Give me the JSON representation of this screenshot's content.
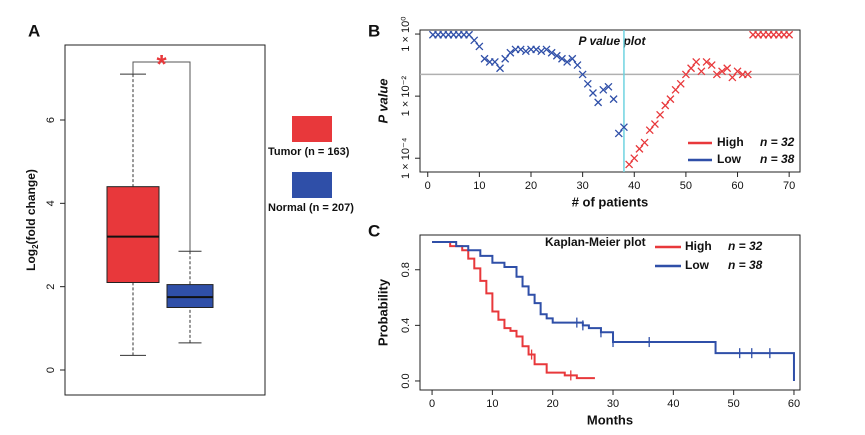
{
  "chart_data": [
    {
      "type": "box",
      "panel": "A",
      "y_label": [
        "Log",
        "2",
        "(fold change)"
      ],
      "ylim": [
        -0.6,
        7.8
      ],
      "yticks": [
        0,
        2,
        4,
        6
      ],
      "annotation": "*",
      "series": [
        {
          "name": "Tumor (n = 163)",
          "color": "#e8383b",
          "whisker_low": 0.35,
          "q1": 2.1,
          "median": 3.2,
          "q3": 4.4,
          "whisker_high": 7.1
        },
        {
          "name": "Normal (n = 207)",
          "color": "#2f4fa8",
          "whisker_low": 0.65,
          "q1": 1.5,
          "median": 1.75,
          "q3": 2.05,
          "whisker_high": 2.85
        }
      ]
    },
    {
      "type": "scatter",
      "panel": "B",
      "title": "P value plot",
      "x_label": "# of patients",
      "y_label": "P value",
      "log_y": true,
      "xlim": [
        -1.5,
        72.1
      ],
      "xticks": [
        0,
        10,
        20,
        30,
        40,
        50,
        60,
        70
      ],
      "ylim": [
        3.6e-05,
        1.35
      ],
      "yticks": [
        {
          "value": 1,
          "label": "1 × 10⁰"
        },
        {
          "value": 0.01,
          "label": "1 × 10⁻²"
        },
        {
          "value": 0.0001,
          "label": "1 × 10⁻⁴"
        }
      ],
      "hline": 0.05,
      "hline_color": "#b0b0b0",
      "vline": 38,
      "vline_color": "#6fd3e0",
      "series": [
        {
          "name": "High",
          "n_label": "n = 32",
          "color": "#e8383b",
          "x": [
            39,
            40,
            41,
            42,
            43,
            44,
            45,
            46,
            47,
            48,
            49,
            50,
            51,
            52,
            53,
            54,
            55,
            56,
            57,
            58,
            59,
            60,
            61,
            62,
            63,
            64,
            65,
            66,
            67,
            68,
            69,
            70
          ],
          "values": [
            6.3e-05,
            0.0001,
            0.0002,
            0.00032,
            0.0008,
            0.00126,
            0.0025,
            0.005,
            0.008,
            0.016,
            0.025,
            0.05,
            0.079,
            0.126,
            0.063,
            0.126,
            0.1,
            0.05,
            0.063,
            0.079,
            0.04,
            0.063,
            0.05,
            0.05,
            0.95,
            0.95,
            0.95,
            0.95,
            0.95,
            0.95,
            0.95,
            0.95
          ]
        },
        {
          "name": "Low",
          "n_label": "n = 38",
          "color": "#2f4fa8",
          "x": [
            1,
            2,
            3,
            4,
            5,
            6,
            7,
            8,
            9,
            10,
            11,
            12,
            13,
            14,
            15,
            16,
            17,
            18,
            19,
            20,
            21,
            22,
            23,
            24,
            25,
            26,
            27,
            28,
            29,
            30,
            31,
            32,
            33,
            34,
            35,
            36,
            37,
            38
          ],
          "values": [
            0.95,
            0.95,
            0.95,
            0.95,
            0.95,
            0.95,
            0.95,
            0.95,
            0.63,
            0.4,
            0.16,
            0.126,
            0.126,
            0.079,
            0.16,
            0.25,
            0.32,
            0.32,
            0.28,
            0.32,
            0.32,
            0.28,
            0.32,
            0.25,
            0.2,
            0.16,
            0.126,
            0.16,
            0.1,
            0.05,
            0.025,
            0.0126,
            0.0063,
            0.016,
            0.02,
            0.008,
            0.00063,
            0.001
          ]
        }
      ]
    },
    {
      "type": "line",
      "step": true,
      "panel": "C",
      "title": "Kaplan-Meier plot",
      "x_label": "Months",
      "y_label": "Probability",
      "xlim": [
        -2,
        61
      ],
      "xticks": [
        0,
        10,
        20,
        30,
        40,
        50,
        60
      ],
      "ylim": [
        -0.065,
        1.05
      ],
      "yticks": [
        {
          "value": 0,
          "label": "0.0"
        },
        0.4,
        0.8
      ],
      "series": [
        {
          "name": "High",
          "n_label": "n = 32",
          "color": "#e8383b",
          "x": [
            0,
            3,
            5,
            6,
            7,
            8,
            9,
            10,
            11,
            12,
            13,
            14,
            15,
            16,
            17,
            19,
            22,
            24,
            27
          ],
          "values": [
            1.0,
            0.97,
            0.94,
            0.88,
            0.81,
            0.72,
            0.63,
            0.5,
            0.44,
            0.38,
            0.36,
            0.32,
            0.25,
            0.19,
            0.12,
            0.06,
            0.04,
            0.02,
            0.02
          ],
          "censor_x": [
            16.5,
            23
          ],
          "censor_values": [
            0.19,
            0.04
          ]
        },
        {
          "name": "Low",
          "n_label": "n = 38",
          "color": "#2f4fa8",
          "x": [
            0,
            4,
            6,
            8,
            10,
            12,
            14,
            15,
            16,
            17,
            18,
            19,
            20,
            25,
            26,
            28,
            30,
            46,
            47,
            59.5,
            60
          ],
          "values": [
            1.0,
            0.97,
            0.94,
            0.9,
            0.85,
            0.82,
            0.75,
            0.68,
            0.62,
            0.56,
            0.48,
            0.45,
            0.42,
            0.4,
            0.38,
            0.35,
            0.28,
            0.28,
            0.2,
            0.2,
            0.0
          ],
          "censor_x": [
            24,
            25,
            28,
            30,
            36,
            51,
            53,
            56
          ],
          "censor_values": [
            0.42,
            0.4,
            0.35,
            0.28,
            0.28,
            0.2,
            0.2,
            0.2
          ]
        }
      ]
    }
  ]
}
